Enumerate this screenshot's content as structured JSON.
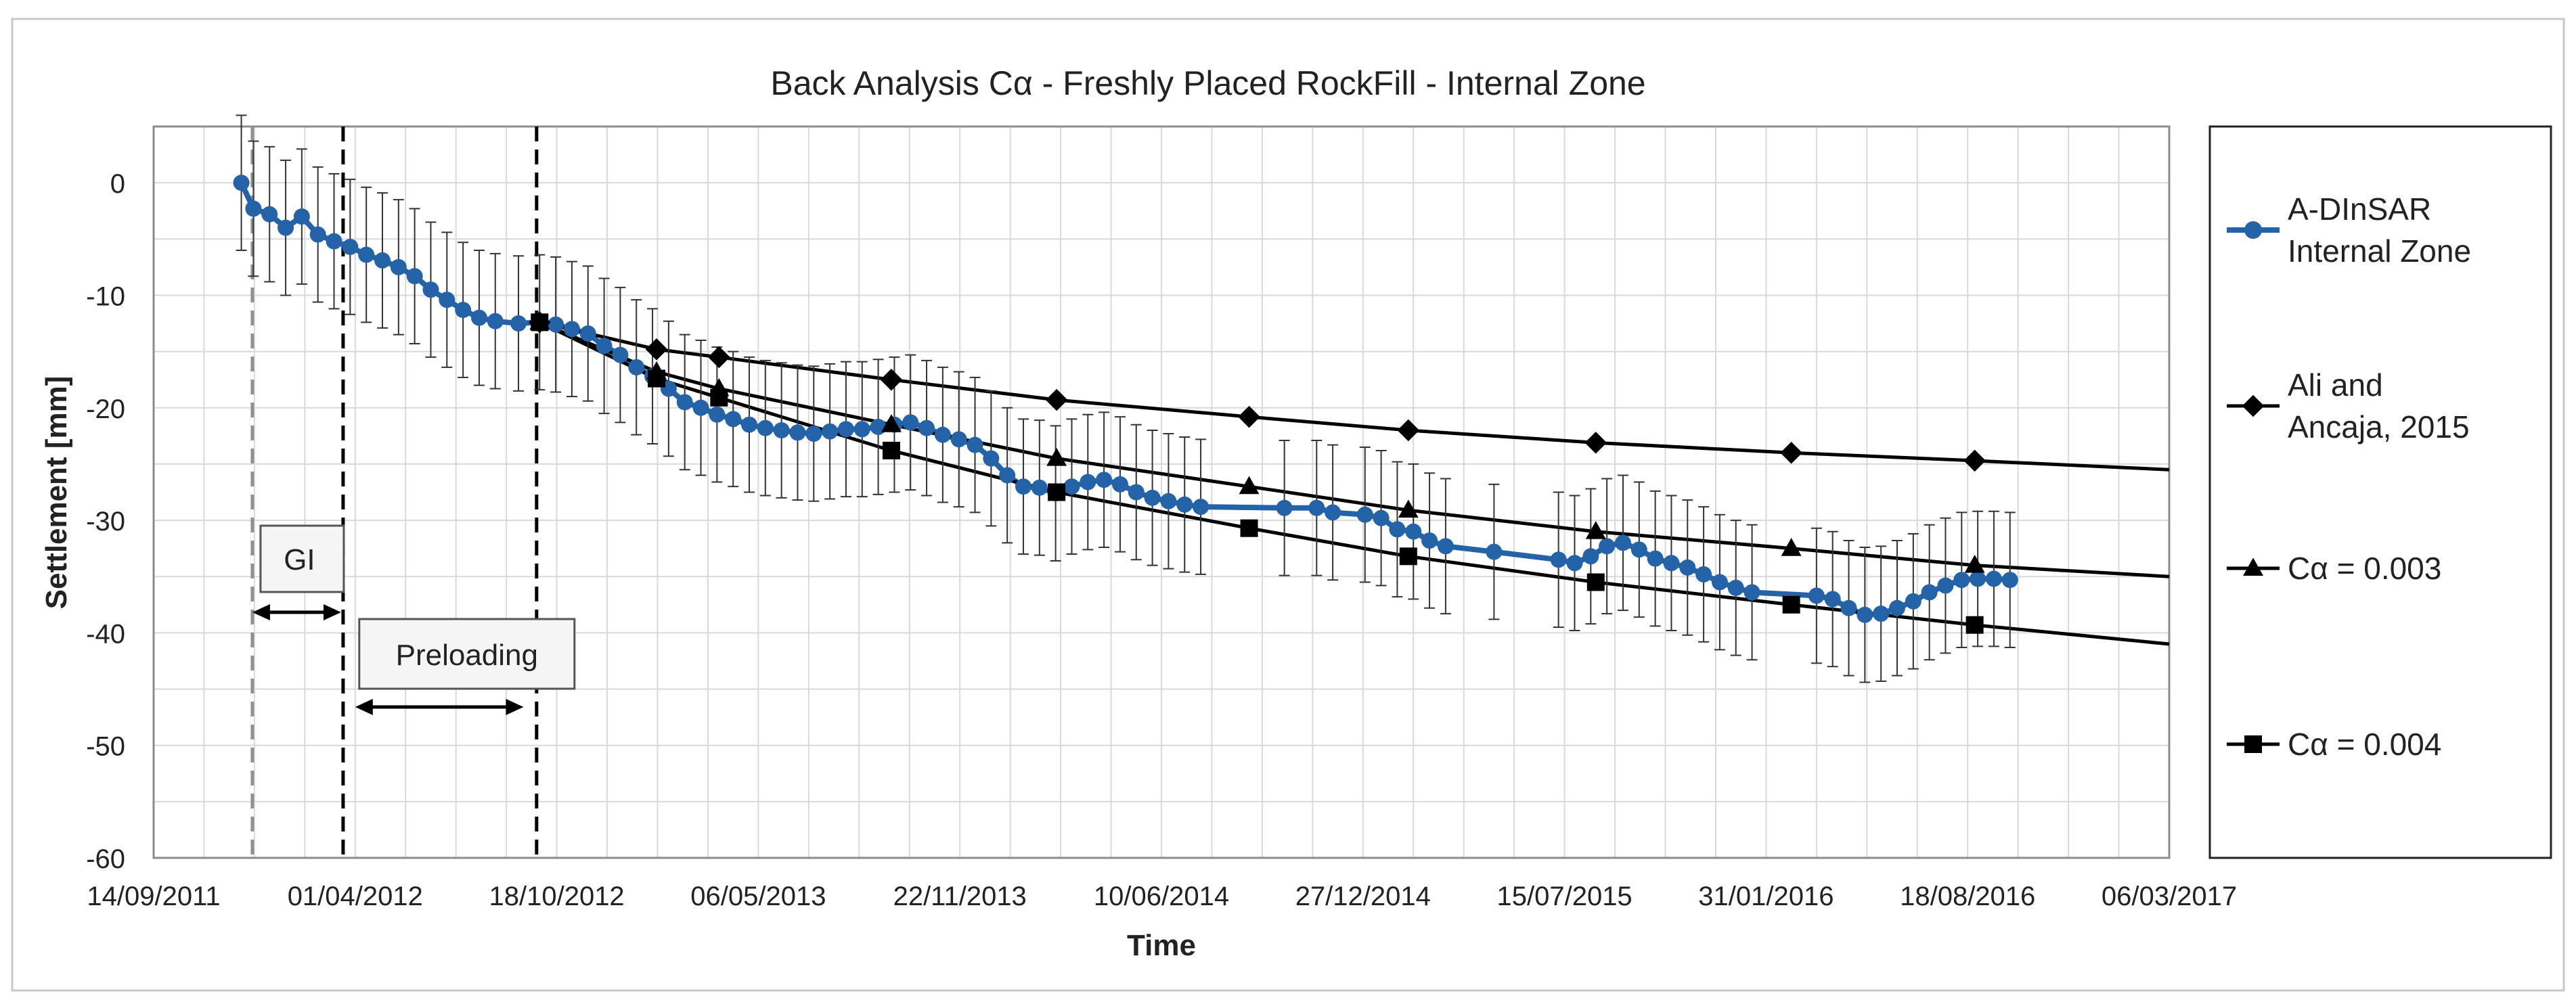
{
  "chart_data": {
    "type": "line",
    "title": "Back Analysis Cα - Freshly Placed RockFill - Internal Zone",
    "xlabel": "Time",
    "ylabel": "Settlement [mm]",
    "x_format": "dd/mm/yyyy",
    "xlim": [
      "2011-09-14",
      "2017-03-06"
    ],
    "x_ticks": [
      "14/09/2011",
      "01/04/2012",
      "18/10/2012",
      "06/05/2013",
      "22/11/2013",
      "10/06/2014",
      "27/12/2014",
      "15/07/2015",
      "31/01/2016",
      "18/08/2016",
      "06/03/2017"
    ],
    "ylim": [
      -60,
      5
    ],
    "y_ticks": [
      0,
      -10,
      -20,
      -30,
      -40,
      -50,
      -60
    ],
    "grid": true,
    "legend_position": "right",
    "legend": [
      {
        "label_lines": [
          "A-DInSAR",
          "Internal Zone"
        ],
        "marker": "circle",
        "color": "#2563a8"
      },
      {
        "label_lines": [
          "Ali and",
          "Ancaja, 2015"
        ],
        "marker": "diamond",
        "color": "#000000"
      },
      {
        "label_lines": [
          "Cα = 0.003"
        ],
        "marker": "triangle",
        "color": "#000000"
      },
      {
        "label_lines": [
          "Cα = 0.004"
        ],
        "marker": "square",
        "color": "#000000"
      }
    ],
    "annotations": {
      "gi": {
        "label": "GI",
        "from": "2011-12-21",
        "to": "2012-03-18"
      },
      "preloading": {
        "label": "Preloading",
        "from": "2012-04-01",
        "to": "2012-09-15"
      },
      "vlines": [
        {
          "date": "2011-12-21",
          "color": "#909090"
        },
        {
          "date": "2012-03-20",
          "color": "#000000"
        },
        {
          "date": "2012-09-28",
          "color": "#000000"
        }
      ]
    },
    "series": [
      {
        "name": "A-DInSAR Internal Zone",
        "color": "#2563a8",
        "marker": "circle",
        "error_bar": 6,
        "points": [
          [
            "2011-12-10",
            0
          ],
          [
            "2011-12-22",
            -2.3
          ],
          [
            "2012-01-07",
            -2.8
          ],
          [
            "2012-01-23",
            -4
          ],
          [
            "2012-02-08",
            -3
          ],
          [
            "2012-02-24",
            -4.6
          ],
          [
            "2012-03-11",
            -5.2
          ],
          [
            "2012-03-27",
            -5.7
          ],
          [
            "2012-04-12",
            -6.4
          ],
          [
            "2012-04-28",
            -6.9
          ],
          [
            "2012-05-14",
            -7.5
          ],
          [
            "2012-05-30",
            -8.3
          ],
          [
            "2012-06-15",
            -9.5
          ],
          [
            "2012-07-01",
            -10.4
          ],
          [
            "2012-07-17",
            -11.3
          ],
          [
            "2012-08-02",
            -12
          ],
          [
            "2012-08-18",
            -12.3
          ],
          [
            "2012-09-10",
            -12.5
          ],
          [
            "2012-10-01",
            -12.4
          ],
          [
            "2012-10-17",
            -12.6
          ],
          [
            "2012-11-02",
            -13
          ],
          [
            "2012-11-18",
            -13.4
          ],
          [
            "2012-12-04",
            -14.5
          ],
          [
            "2012-12-20",
            -15.3
          ],
          [
            "2013-01-05",
            -16.4
          ],
          [
            "2013-01-21",
            -17.2
          ],
          [
            "2013-02-06",
            -18.3
          ],
          [
            "2013-02-22",
            -19.5
          ],
          [
            "2013-03-10",
            -20
          ],
          [
            "2013-03-26",
            -20.6
          ],
          [
            "2013-04-11",
            -21
          ],
          [
            "2013-04-27",
            -21.5
          ],
          [
            "2013-05-13",
            -21.8
          ],
          [
            "2013-05-29",
            -22
          ],
          [
            "2013-06-14",
            -22.2
          ],
          [
            "2013-06-30",
            -22.3
          ],
          [
            "2013-07-16",
            -22.1
          ],
          [
            "2013-08-01",
            -21.9
          ],
          [
            "2013-08-17",
            -21.9
          ],
          [
            "2013-09-02",
            -21.7
          ],
          [
            "2013-09-18",
            -21.5
          ],
          [
            "2013-10-04",
            -21.3
          ],
          [
            "2013-10-20",
            -21.8
          ],
          [
            "2013-11-05",
            -22.4
          ],
          [
            "2013-11-21",
            -22.8
          ],
          [
            "2013-12-07",
            -23.3
          ],
          [
            "2013-12-23",
            -24.5
          ],
          [
            "2014-01-08",
            -26
          ],
          [
            "2014-01-24",
            -27
          ],
          [
            "2014-02-09",
            -27.1
          ],
          [
            "2014-02-25",
            -27.6
          ],
          [
            "2014-03-13",
            -27
          ],
          [
            "2014-03-29",
            -26.6
          ],
          [
            "2014-04-14",
            -26.4
          ],
          [
            "2014-04-30",
            -26.8
          ],
          [
            "2014-05-16",
            -27.5
          ],
          [
            "2014-06-01",
            -28
          ],
          [
            "2014-06-17",
            -28.3
          ],
          [
            "2014-07-03",
            -28.6
          ],
          [
            "2014-07-19",
            -28.8
          ],
          [
            "2014-10-10",
            -28.9
          ],
          [
            "2014-11-11",
            -28.9
          ],
          [
            "2014-11-27",
            -29.3
          ],
          [
            "2014-12-29",
            -29.5
          ],
          [
            "2015-01-14",
            -29.8
          ],
          [
            "2015-01-30",
            -30.8
          ],
          [
            "2015-02-15",
            -31
          ],
          [
            "2015-03-03",
            -31.8
          ],
          [
            "2015-03-19",
            -32.3
          ],
          [
            "2015-05-06",
            -32.8
          ],
          [
            "2015-07-09",
            -33.5
          ],
          [
            "2015-07-25",
            -33.8
          ],
          [
            "2015-08-10",
            -33.2
          ],
          [
            "2015-08-26",
            -32.3
          ],
          [
            "2015-09-11",
            -32
          ],
          [
            "2015-09-27",
            -32.6
          ],
          [
            "2015-10-13",
            -33.4
          ],
          [
            "2015-10-29",
            -33.8
          ],
          [
            "2015-11-14",
            -34.2
          ],
          [
            "2015-11-30",
            -34.8
          ],
          [
            "2015-12-16",
            -35.5
          ],
          [
            "2016-01-01",
            -36
          ],
          [
            "2016-01-17",
            -36.4
          ],
          [
            "2016-03-21",
            -36.7
          ],
          [
            "2016-04-06",
            -37
          ],
          [
            "2016-04-22",
            -37.8
          ],
          [
            "2016-05-08",
            -38.4
          ],
          [
            "2016-05-24",
            -38.3
          ],
          [
            "2016-06-09",
            -37.8
          ],
          [
            "2016-06-25",
            -37.2
          ],
          [
            "2016-07-11",
            -36.4
          ],
          [
            "2016-07-27",
            -35.8
          ],
          [
            "2016-08-12",
            -35.3
          ],
          [
            "2016-08-28",
            -35.2
          ],
          [
            "2016-09-13",
            -35.2
          ],
          [
            "2016-09-29",
            -35.3
          ]
        ]
      },
      {
        "name": "Ali and Ancaja, 2015",
        "color": "#000000",
        "marker": "diamond",
        "curve_ymax": -25.5,
        "points": [
          [
            "2012-10-01",
            -12.4
          ],
          [
            "2013-01-25",
            -14.8
          ],
          [
            "2013-03-28",
            -15.5
          ],
          [
            "2013-09-15",
            -17.5
          ],
          [
            "2014-02-26",
            -19.3
          ],
          [
            "2014-09-05",
            -20.8
          ],
          [
            "2015-02-10",
            -22
          ],
          [
            "2015-08-15",
            -23.1
          ],
          [
            "2016-02-25",
            -24
          ],
          [
            "2016-08-25",
            -24.7
          ]
        ]
      },
      {
        "name": "Cα = 0.003",
        "color": "#000000",
        "marker": "triangle",
        "curve_ymax": -35,
        "points": [
          [
            "2012-10-01",
            -12.4
          ],
          [
            "2013-01-25",
            -16.8
          ],
          [
            "2013-03-28",
            -18.3
          ],
          [
            "2013-09-15",
            -21.5
          ],
          [
            "2014-02-26",
            -24.5
          ],
          [
            "2014-09-05",
            -27
          ],
          [
            "2015-02-10",
            -29.1
          ],
          [
            "2015-08-15",
            -31
          ],
          [
            "2016-02-25",
            -32.5
          ],
          [
            "2016-08-25",
            -34
          ]
        ]
      },
      {
        "name": "Cα = 0.004",
        "color": "#000000",
        "marker": "square",
        "curve_ymax": -41,
        "points": [
          [
            "2012-10-01",
            -12.4
          ],
          [
            "2013-01-25",
            -17.4
          ],
          [
            "2013-03-28",
            -19.1
          ],
          [
            "2013-09-15",
            -23.8
          ],
          [
            "2014-02-26",
            -27.5
          ],
          [
            "2014-09-05",
            -30.7
          ],
          [
            "2015-02-10",
            -33.2
          ],
          [
            "2015-08-15",
            -35.5
          ],
          [
            "2016-02-25",
            -37.5
          ],
          [
            "2016-08-25",
            -39.3
          ]
        ]
      }
    ]
  }
}
